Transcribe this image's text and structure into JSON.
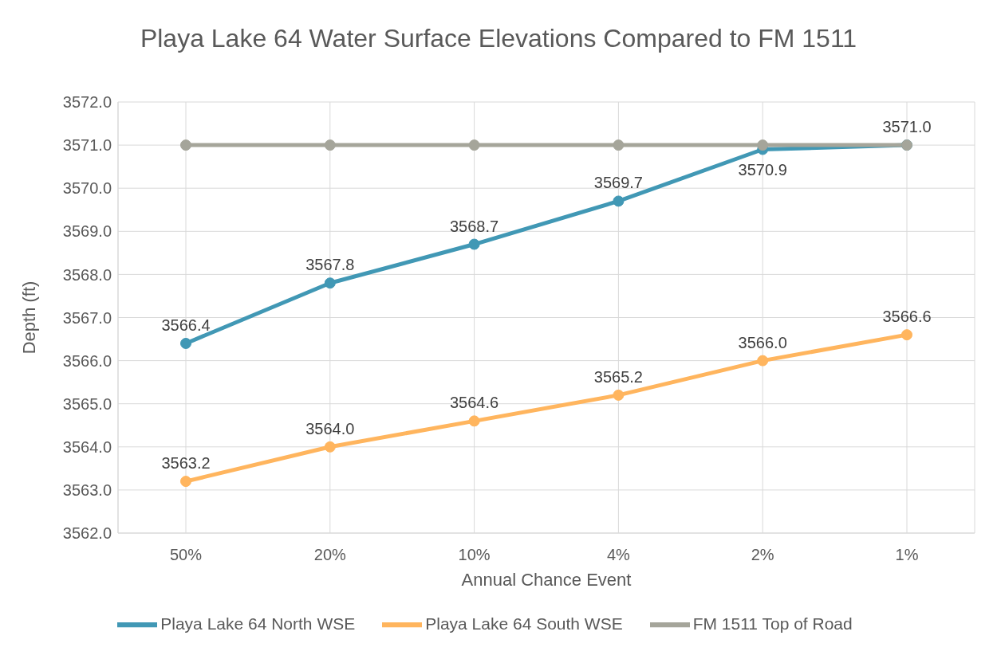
{
  "chart_data": {
    "type": "line",
    "title": "Playa Lake 64 Water Surface Elevations Compared to FM 1511",
    "xlabel": "Annual Chance Event",
    "ylabel": "Depth (ft)",
    "categories": [
      "50%",
      "20%",
      "10%",
      "4%",
      "2%",
      "1%"
    ],
    "series": [
      {
        "name": "Playa Lake 64 North WSE",
        "color": "#4198b5",
        "values": [
          3566.4,
          3567.8,
          3568.7,
          3569.7,
          3570.9,
          3571.0
        ],
        "value_labels": [
          "3566.4",
          "3567.8",
          "3568.7",
          "3569.7",
          "3570.9",
          "3571.0"
        ]
      },
      {
        "name": "Playa Lake 64 South WSE",
        "color": "#ffb55e",
        "values": [
          3563.2,
          3564.0,
          3564.6,
          3565.2,
          3566.0,
          3566.6
        ],
        "value_labels": [
          "3563.2",
          "3564.0",
          "3564.6",
          "3565.2",
          "3566.0",
          "3566.6"
        ]
      },
      {
        "name": "FM 1511 Top of Road",
        "color": "#a5a59a",
        "values": [
          3571.0,
          3571.0,
          3571.0,
          3571.0,
          3571.0,
          3571.0
        ]
      }
    ],
    "ylim": [
      3562,
      3572
    ],
    "yticks": [
      {
        "value": 3562,
        "label": "3562.0"
      },
      {
        "value": 3563,
        "label": "3563.0"
      },
      {
        "value": 3564,
        "label": "3564.0"
      },
      {
        "value": 3565,
        "label": "3565.0"
      },
      {
        "value": 3566,
        "label": "3566.0"
      },
      {
        "value": 3567,
        "label": "3567.0"
      },
      {
        "value": 3568,
        "label": "3568.0"
      },
      {
        "value": 3569,
        "label": "3569.0"
      },
      {
        "value": 3570,
        "label": "3570.0"
      },
      {
        "value": 3571,
        "label": "3571.0"
      },
      {
        "value": 3572,
        "label": "3572.0"
      }
    ],
    "grid": true,
    "legend": "bottom",
    "marker": "circle",
    "line_style": "solid"
  }
}
